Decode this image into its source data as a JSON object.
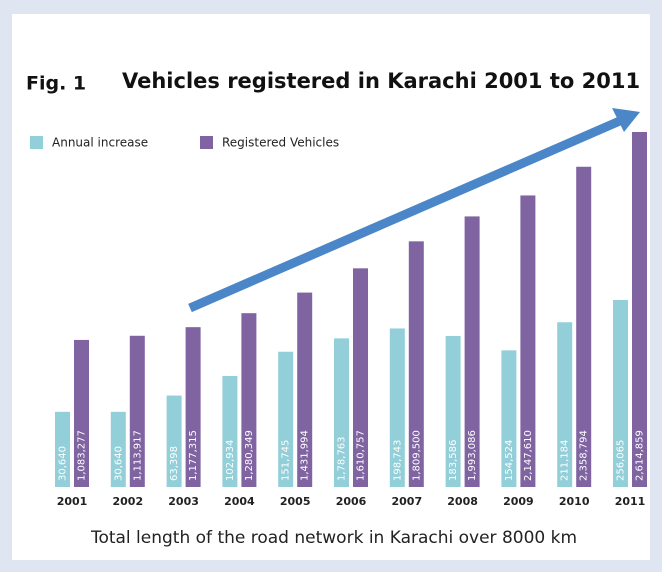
{
  "chart_data": {
    "type": "bar",
    "figure_label": "Fig. 1",
    "title": "Vehicles registered in Karachi 2001 to 2011",
    "footnote": "Total length of the road network in Karachi over 8000 km",
    "legend": "top-left",
    "categories": [
      "2001",
      "2002",
      "2003",
      "2004",
      "2005",
      "2006",
      "2007",
      "2008",
      "2009",
      "2010",
      "2011"
    ],
    "series": [
      {
        "name": "Annual increase",
        "color": "#93cfd9",
        "values": [
          30640,
          30640,
          63398,
          102934,
          151745,
          178763,
          198743,
          183586,
          154524,
          211184,
          256065
        ],
        "value_labels": [
          "30,640",
          "30,640",
          "63,398",
          "102,934",
          "151,745",
          "1,78,763",
          "198,743",
          "183,586",
          "154,524",
          "211,184",
          "256,065"
        ]
      },
      {
        "name": "Registered Vehicles",
        "color": "#8064a2",
        "values": [
          1083277,
          1113917,
          1177315,
          1280349,
          1431994,
          1610757,
          1809500,
          1993086,
          2147610,
          2358794,
          2614859
        ],
        "value_labels": [
          "1,083,277",
          "1,113,917",
          "1,177,315",
          "1,280,349",
          "1,431,994",
          "1,610,757",
          "1,809,500",
          "1,993,086",
          "2,147,610",
          "2,358,794",
          "2,614,859"
        ]
      }
    ]
  }
}
